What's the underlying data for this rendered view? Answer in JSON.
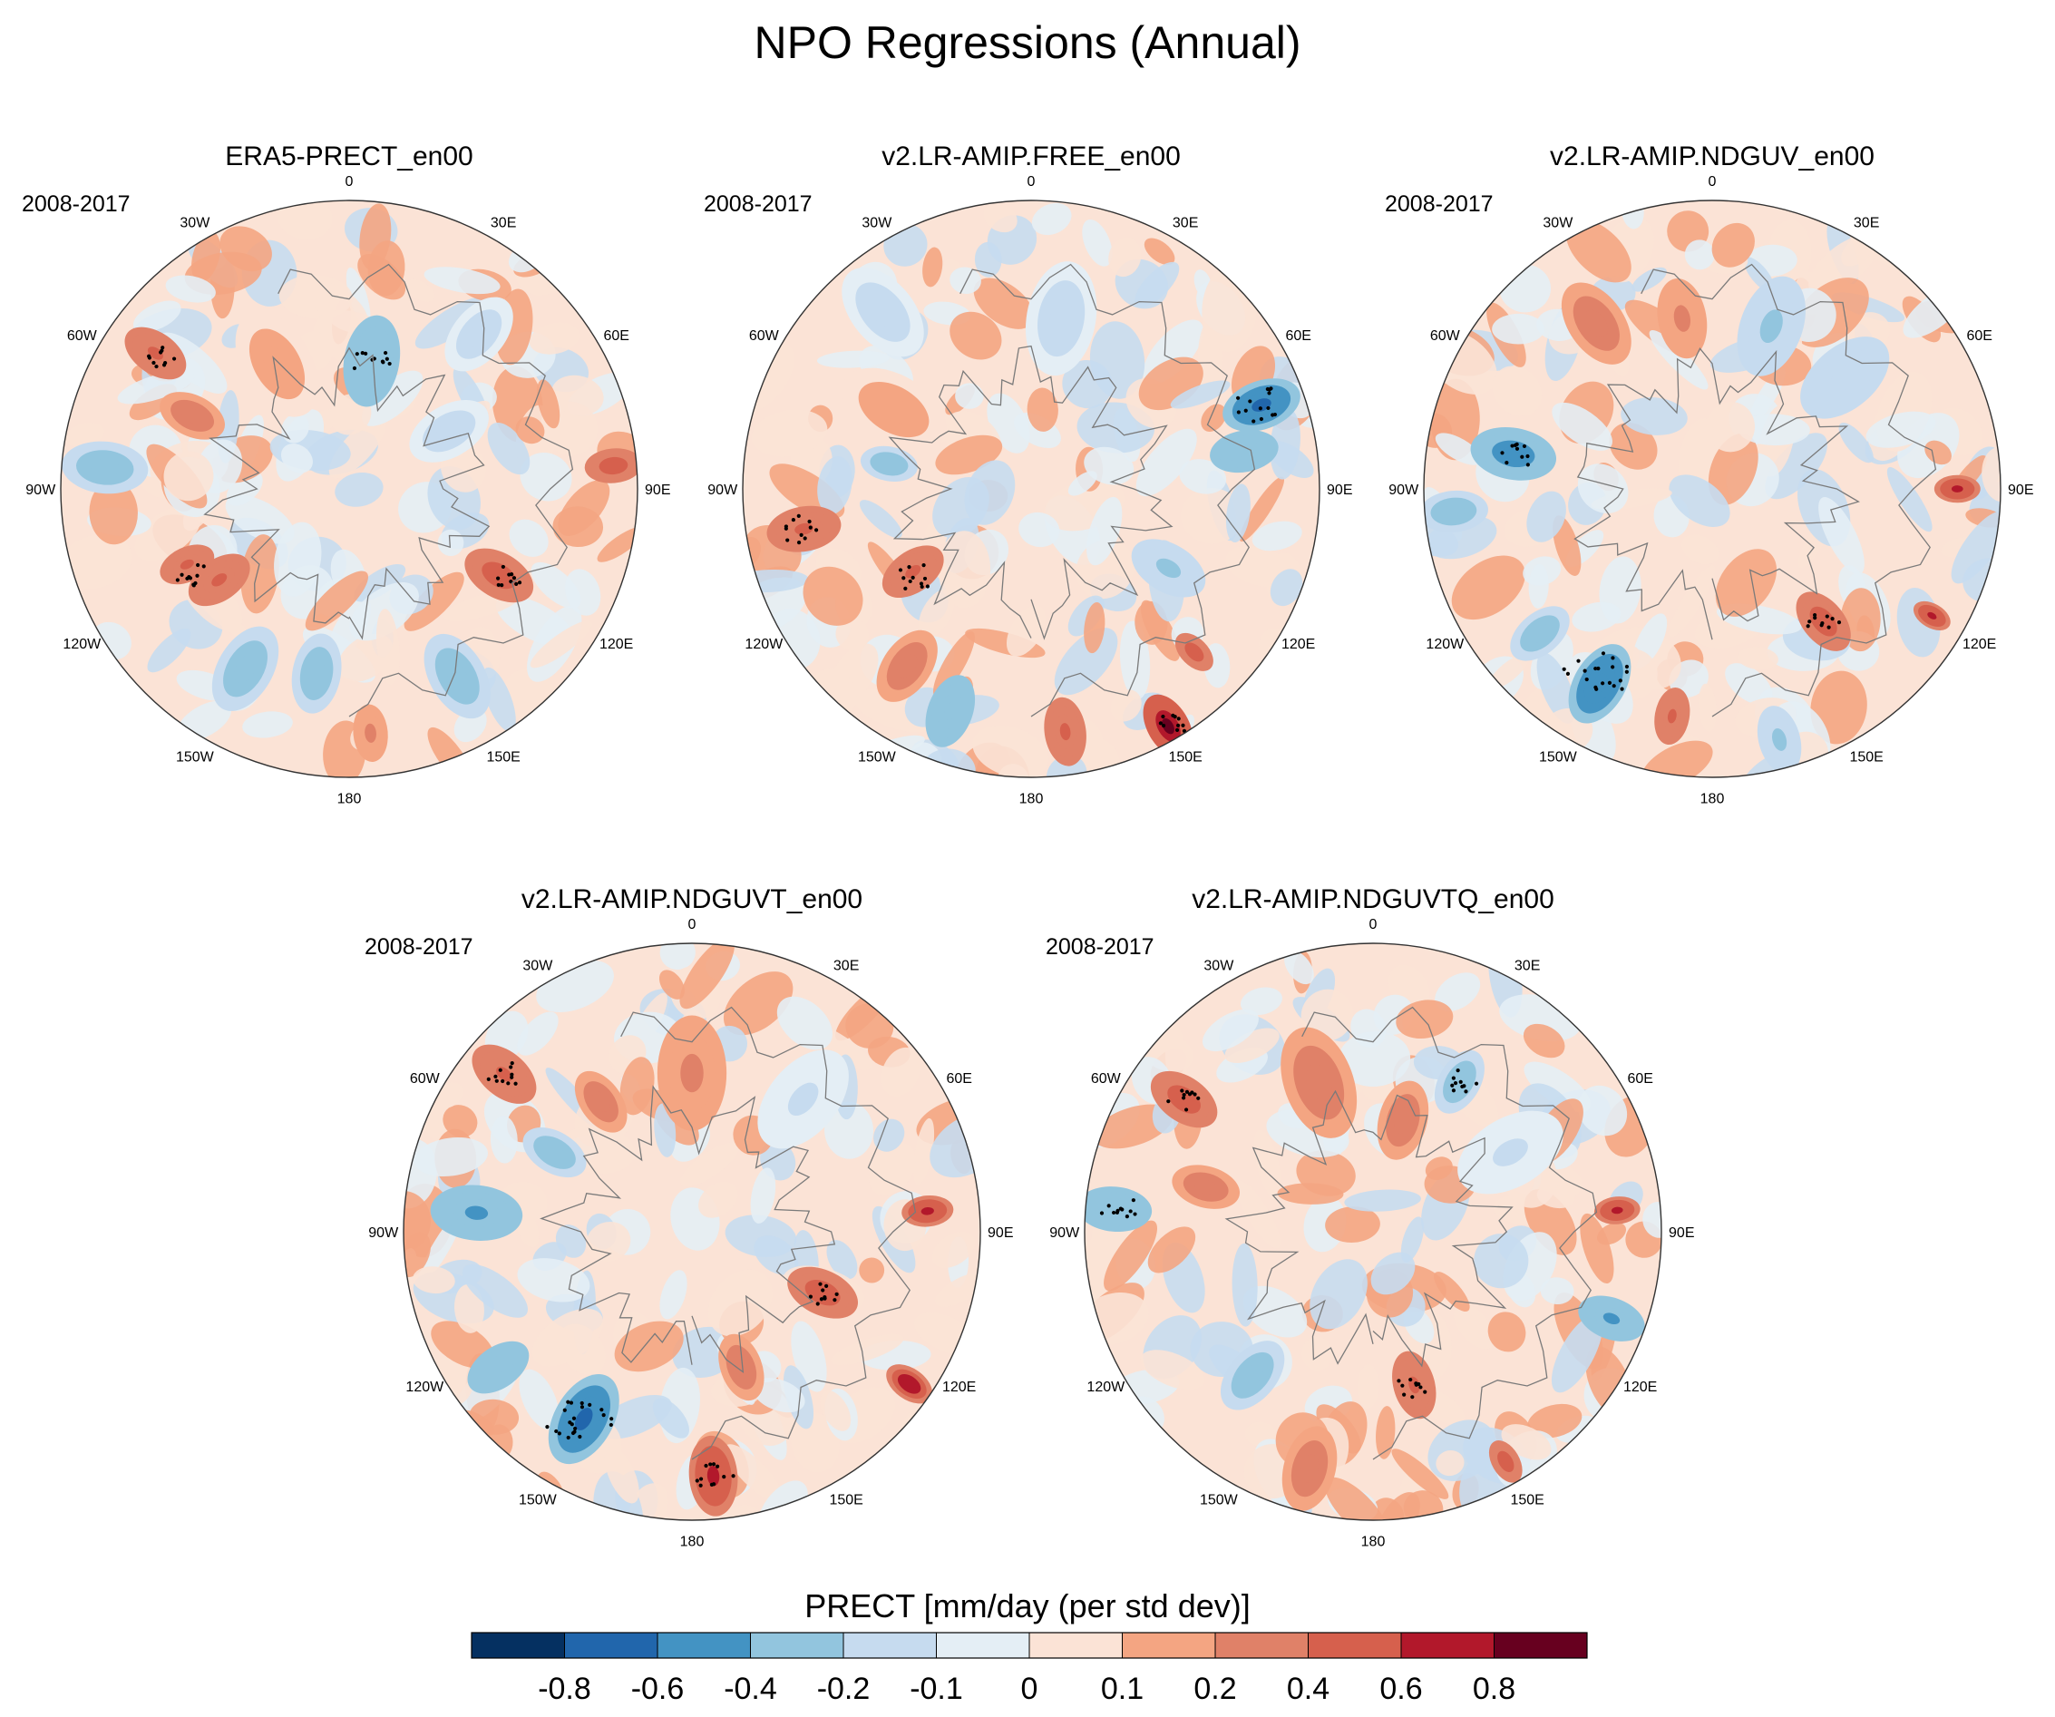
{
  "figure": {
    "title": "NPO Regressions (Annual)"
  },
  "chart_data": {
    "type": "heatmap",
    "projection": "north-polar-stereographic",
    "variable": "PRECT",
    "units": "mm/day (per std dev)",
    "period": "2008-2017",
    "longitude_labels": [
      "180",
      "150E",
      "120E",
      "90E",
      "60E",
      "30E",
      "0",
      "30W",
      "60W",
      "90W",
      "120W",
      "150W"
    ],
    "panels": [
      {
        "title": "ERA5-PRECT_en00",
        "period": "2008-2017",
        "features": [
          {
            "lon": -150,
            "r": 0.72,
            "v": -0.3,
            "size": 0.16
          },
          {
            "lon": -125,
            "r": 0.55,
            "v": 0.4,
            "size": 0.12
          },
          {
            "lon": -115,
            "r": 0.62,
            "v": 0.45,
            "size": 0.1
          },
          {
            "lon": -85,
            "r": 0.85,
            "v": -0.3,
            "size": 0.15
          },
          {
            "lon": -65,
            "r": 0.6,
            "v": 0.3,
            "size": 0.12
          },
          {
            "lon": -55,
            "r": 0.82,
            "v": 0.45,
            "size": 0.12
          },
          {
            "lon": -30,
            "r": 0.5,
            "v": 0.15,
            "size": 0.2
          },
          {
            "lon": 10,
            "r": 0.45,
            "v": -0.4,
            "size": 0.16
          },
          {
            "lon": 40,
            "r": 0.7,
            "v": -0.15,
            "size": 0.15
          },
          {
            "lon": 85,
            "r": 0.92,
            "v": 0.5,
            "size": 0.1
          },
          {
            "lon": 120,
            "r": 0.6,
            "v": 0.55,
            "size": 0.13
          },
          {
            "lon": 150,
            "r": 0.75,
            "v": -0.3,
            "size": 0.16
          },
          {
            "lon": 175,
            "r": 0.85,
            "v": 0.2,
            "size": 0.1
          },
          {
            "lon": -170,
            "r": 0.65,
            "v": -0.3,
            "size": 0.14
          },
          {
            "lon": 60,
            "r": 0.4,
            "v": -0.15,
            "size": 0.15
          }
        ],
        "stipple": [
          {
            "lon": -118,
            "r": 0.62,
            "size": 0.07
          },
          {
            "lon": -55,
            "r": 0.8,
            "size": 0.06
          },
          {
            "lon": 10,
            "r": 0.45,
            "size": 0.07
          },
          {
            "lon": 120,
            "r": 0.62,
            "size": 0.06
          }
        ]
      },
      {
        "title": "v2.LR-AMIP.FREE_en00",
        "period": "2008-2017",
        "features": [
          {
            "lon": 150,
            "r": 0.95,
            "v": 0.8,
            "size": 0.12
          },
          {
            "lon": 172,
            "r": 0.85,
            "v": 0.45,
            "size": 0.12
          },
          {
            "lon": -160,
            "r": 0.82,
            "v": -0.4,
            "size": 0.13
          },
          {
            "lon": -145,
            "r": 0.75,
            "v": 0.3,
            "size": 0.14
          },
          {
            "lon": -125,
            "r": 0.5,
            "v": 0.45,
            "size": 0.12
          },
          {
            "lon": -100,
            "r": 0.8,
            "v": 0.4,
            "size": 0.13
          },
          {
            "lon": 70,
            "r": 0.85,
            "v": -0.7,
            "size": 0.14
          },
          {
            "lon": 80,
            "r": 0.75,
            "v": -0.4,
            "size": 0.12
          },
          {
            "lon": -60,
            "r": 0.55,
            "v": 0.15,
            "size": 0.2
          },
          {
            "lon": 10,
            "r": 0.6,
            "v": -0.15,
            "size": 0.2
          },
          {
            "lon": 120,
            "r": 0.55,
            "v": -0.25,
            "size": 0.14
          },
          {
            "lon": -80,
            "r": 0.5,
            "v": -0.3,
            "size": 0.1
          },
          {
            "lon": 135,
            "r": 0.8,
            "v": 0.5,
            "size": 0.08
          },
          {
            "lon": -40,
            "r": 0.8,
            "v": -0.15,
            "size": 0.18
          }
        ],
        "stipple": [
          {
            "lon": 148,
            "r": 0.95,
            "size": 0.06
          },
          {
            "lon": 70,
            "r": 0.85,
            "size": 0.09
          },
          {
            "lon": -100,
            "r": 0.82,
            "size": 0.07
          },
          {
            "lon": -128,
            "r": 0.5,
            "size": 0.07
          }
        ]
      },
      {
        "title": "v2.LR-AMIP.NDGUV_en00",
        "period": "2008-2017",
        "features": [
          {
            "lon": -150,
            "r": 0.78,
            "v": -0.6,
            "size": 0.15
          },
          {
            "lon": -130,
            "r": 0.78,
            "v": -0.35,
            "size": 0.12
          },
          {
            "lon": -170,
            "r": 0.8,
            "v": 0.45,
            "size": 0.1
          },
          {
            "lon": 140,
            "r": 0.6,
            "v": 0.5,
            "size": 0.12
          },
          {
            "lon": 120,
            "r": 0.88,
            "v": 0.7,
            "size": 0.07
          },
          {
            "lon": 90,
            "r": 0.85,
            "v": 0.6,
            "size": 0.08
          },
          {
            "lon": -80,
            "r": 0.7,
            "v": -0.5,
            "size": 0.15
          },
          {
            "lon": -95,
            "r": 0.9,
            "v": -0.35,
            "size": 0.12
          },
          {
            "lon": -35,
            "r": 0.7,
            "v": 0.35,
            "size": 0.16
          },
          {
            "lon": -10,
            "r": 0.6,
            "v": 0.25,
            "size": 0.14
          },
          {
            "lon": 20,
            "r": 0.6,
            "v": -0.25,
            "size": 0.18
          },
          {
            "lon": 50,
            "r": 0.6,
            "v": -0.2,
            "size": 0.18
          },
          {
            "lon": 165,
            "r": 0.9,
            "v": -0.25,
            "size": 0.12
          }
        ],
        "stipple": [
          {
            "lon": -148,
            "r": 0.76,
            "size": 0.12
          },
          {
            "lon": 140,
            "r": 0.6,
            "size": 0.06
          },
          {
            "lon": -80,
            "r": 0.68,
            "size": 0.06
          }
        ]
      },
      {
        "title": "v2.LR-AMIP.NDGUVT_en00",
        "period": "2008-2017",
        "features": [
          {
            "lon": -150,
            "r": 0.75,
            "v": -0.65,
            "size": 0.17
          },
          {
            "lon": -125,
            "r": 0.82,
            "v": -0.4,
            "size": 0.12
          },
          {
            "lon": 175,
            "r": 0.85,
            "v": 0.6,
            "size": 0.14
          },
          {
            "lon": 125,
            "r": 0.92,
            "v": 0.75,
            "size": 0.09
          },
          {
            "lon": 115,
            "r": 0.5,
            "v": 0.5,
            "size": 0.13
          },
          {
            "lon": 85,
            "r": 0.82,
            "v": 0.65,
            "size": 0.09
          },
          {
            "lon": -85,
            "r": 0.75,
            "v": -0.45,
            "size": 0.16
          },
          {
            "lon": -60,
            "r": 0.55,
            "v": -0.35,
            "size": 0.12
          },
          {
            "lon": -50,
            "r": 0.85,
            "v": 0.45,
            "size": 0.13
          },
          {
            "lon": -35,
            "r": 0.55,
            "v": 0.3,
            "size": 0.12
          },
          {
            "lon": 0,
            "r": 0.55,
            "v": 0.2,
            "size": 0.2
          },
          {
            "lon": 160,
            "r": 0.5,
            "v": 0.35,
            "size": 0.12
          },
          {
            "lon": 40,
            "r": 0.6,
            "v": -0.12,
            "size": 0.2
          }
        ],
        "stipple": [
          {
            "lon": -148,
            "r": 0.76,
            "size": 0.13
          },
          {
            "lon": 175,
            "r": 0.85,
            "size": 0.07
          },
          {
            "lon": -50,
            "r": 0.85,
            "size": 0.07
          },
          {
            "lon": 115,
            "r": 0.5,
            "size": 0.06
          }
        ]
      },
      {
        "title": "v2.LR-AMIP.NDGUVTQ_en00",
        "period": "2008-2017",
        "features": [
          {
            "lon": -165,
            "r": 0.85,
            "v": 0.3,
            "size": 0.15
          },
          {
            "lon": 165,
            "r": 0.55,
            "v": 0.45,
            "size": 0.12
          },
          {
            "lon": 150,
            "r": 0.92,
            "v": 0.5,
            "size": 0.08
          },
          {
            "lon": 110,
            "r": 0.88,
            "v": -0.45,
            "size": 0.12
          },
          {
            "lon": 85,
            "r": 0.85,
            "v": 0.6,
            "size": 0.08
          },
          {
            "lon": -85,
            "r": 0.9,
            "v": -0.4,
            "size": 0.13
          },
          {
            "lon": -75,
            "r": 0.6,
            "v": 0.35,
            "size": 0.12
          },
          {
            "lon": -55,
            "r": 0.8,
            "v": 0.5,
            "size": 0.13
          },
          {
            "lon": -20,
            "r": 0.55,
            "v": 0.3,
            "size": 0.2
          },
          {
            "lon": 15,
            "r": 0.4,
            "v": 0.35,
            "size": 0.14
          },
          {
            "lon": 30,
            "r": 0.6,
            "v": -0.35,
            "size": 0.12
          },
          {
            "lon": -140,
            "r": 0.65,
            "v": -0.3,
            "size": 0.14
          },
          {
            "lon": 60,
            "r": 0.55,
            "v": -0.12,
            "size": 0.2
          }
        ],
        "stipple": [
          {
            "lon": 165,
            "r": 0.55,
            "size": 0.06
          },
          {
            "lon": -55,
            "r": 0.8,
            "size": 0.06
          },
          {
            "lon": -85,
            "r": 0.88,
            "size": 0.07
          },
          {
            "lon": 30,
            "r": 0.6,
            "size": 0.06
          }
        ]
      }
    ],
    "colorbar": {
      "label": "PRECT [mm/day (per std dev)]",
      "tick_labels": [
        "-0.8",
        "-0.6",
        "-0.4",
        "-0.2",
        "-0.1",
        "0",
        "0.1",
        "0.2",
        "0.4",
        "0.6",
        "0.8"
      ],
      "levels": [
        -0.8,
        -0.6,
        -0.4,
        -0.2,
        -0.1,
        0,
        0.1,
        0.2,
        0.4,
        0.6,
        0.8
      ],
      "colors": [
        "#053061",
        "#2166ac",
        "#4393c3",
        "#92c5de",
        "#c6dbef",
        "#e4eef5",
        "#fbe3d6",
        "#f4a582",
        "#e08168",
        "#d6604d",
        "#b2182b",
        "#67001f"
      ]
    }
  }
}
